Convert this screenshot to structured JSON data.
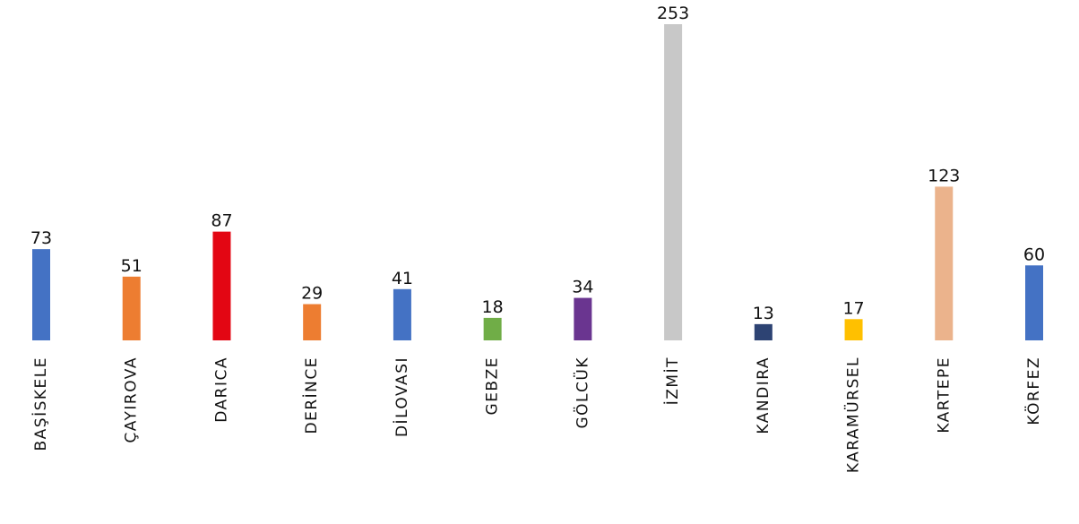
{
  "chart_data": {
    "type": "bar",
    "categories": [
      "BAŞİSKELE",
      "ÇAYIROVA",
      "DARICA",
      "DERİNCE",
      "DİLOVASI",
      "GEBZE",
      "GÖLCÜK",
      "İZMİT",
      "KANDIRA",
      "KARAMÜRSEL",
      "KARTEPE",
      "KÖRFEZ"
    ],
    "values": [
      73,
      51,
      87,
      29,
      41,
      18,
      34,
      253,
      13,
      17,
      123,
      60
    ],
    "colors": [
      "#4472c4",
      "#ed7d31",
      "#e30613",
      "#ed7d31",
      "#4472c4",
      "#70ad47",
      "#6a3590",
      "#c8c8c8",
      "#2d4373",
      "#ffc000",
      "#ebb38c",
      "#4472c4"
    ]
  }
}
